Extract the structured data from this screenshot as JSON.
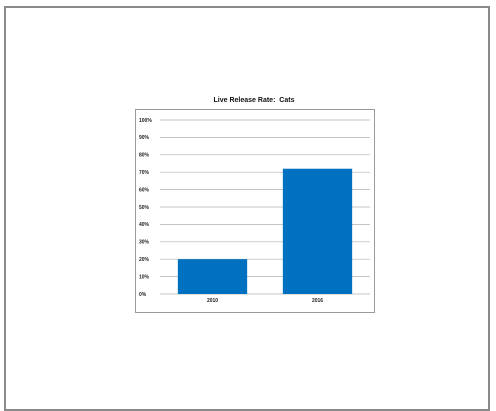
{
  "chart_data": {
    "type": "bar",
    "title": "Live Release Rate:  Cats",
    "categories": [
      "2010",
      "2016"
    ],
    "values": [
      20,
      72
    ],
    "ylim": [
      0,
      100
    ],
    "yticks": [
      "0%",
      "10%",
      "20%",
      "30%",
      "40%",
      "50%",
      "60%",
      "70%",
      "80%",
      "90%",
      "100%"
    ],
    "grid": true,
    "bar_color": "#0070c0",
    "gridline_color": "#b0b0b0"
  }
}
